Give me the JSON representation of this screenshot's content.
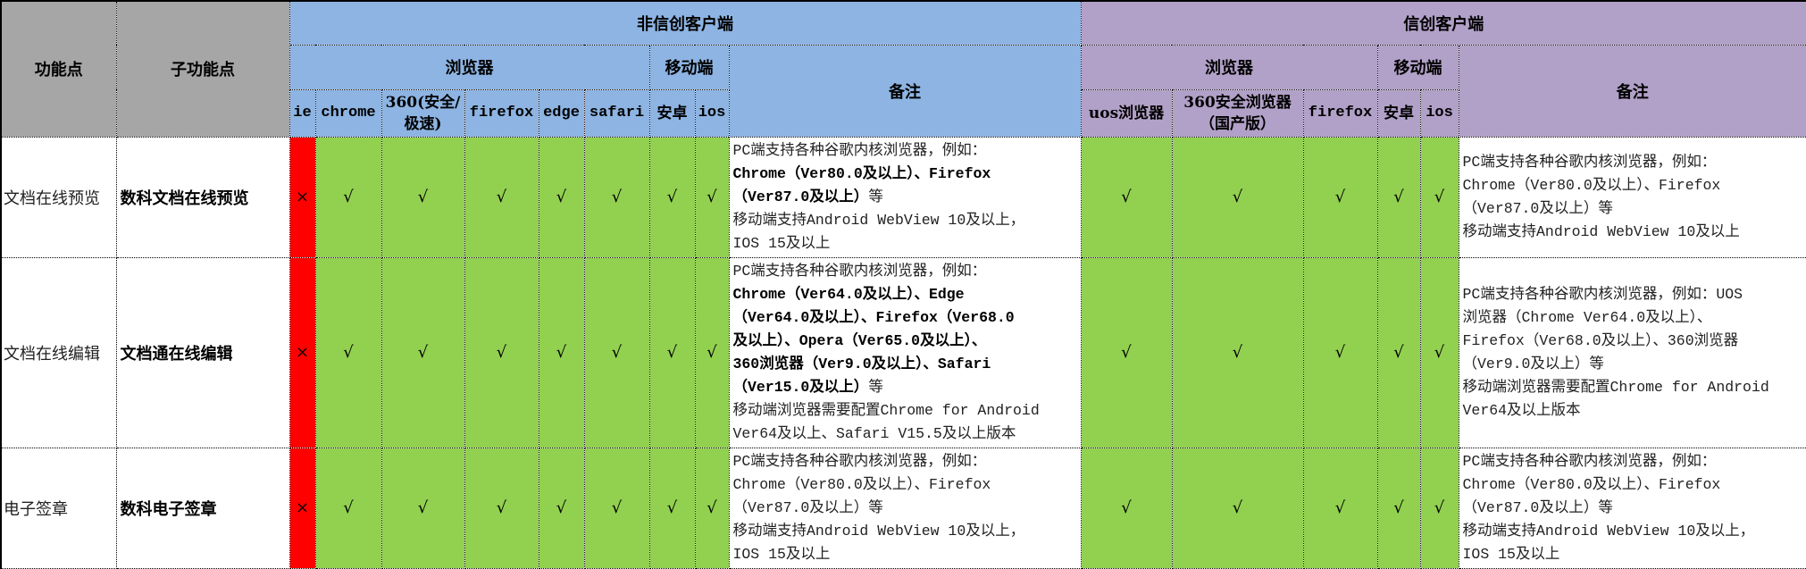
{
  "colors": {
    "feature_header": "#A6A6A6",
    "non_xinchuang": "#8DB4E2",
    "xinchuang": "#B1A0C7",
    "supported": "#92D050",
    "unsupported": "#FF0000"
  },
  "header": {
    "feature": "功能点",
    "sub_feature": "子功能点",
    "non_xinchuang": {
      "title": "非信创客户端",
      "browsers_label": "浏览器",
      "mobile_label": "移动端",
      "remark_label": "备注",
      "browsers": [
        "ie",
        "chrome",
        "360(安全/极速)",
        "firefox",
        "edge",
        "safari"
      ],
      "mobile": [
        "安卓",
        "ios"
      ]
    },
    "xinchuang": {
      "title": "信创客户端",
      "browsers_label": "浏览器",
      "mobile_label": "移动端",
      "remark_label": "备注",
      "browsers": [
        "uos浏览器",
        "360安全浏览器（国产版）",
        "firefox"
      ],
      "mobile": [
        "安卓",
        "ios"
      ]
    }
  },
  "rows": [
    {
      "feature": "文档在线预览",
      "sub_feature": "数科文档在线预览",
      "non_xinchuang": [
        "×",
        "√",
        "√",
        "√",
        "√",
        "√",
        "√",
        "√"
      ],
      "non_xinchuang_remark": [
        {
          "t": "PC端支持各种谷歌内核浏览器，例如："
        },
        {
          "b": "Chrome（Ver80.0及以上）、Firefox"
        },
        {
          "b": "（Ver87.0及以上）",
          "t": "等"
        },
        {
          "t": "移动端支持Android  WebView 10及以上，"
        },
        {
          "t": "IOS 15及以上"
        }
      ],
      "xinchuang": [
        "√",
        "√",
        "√",
        "√",
        "√"
      ],
      "xinchuang_remark": [
        {
          "t": "PC端支持各种谷歌内核浏览器，例如："
        },
        {
          "t": "Chrome（Ver80.0及以上）、Firefox"
        },
        {
          "t": "（Ver87.0及以上）等"
        },
        {
          "t": "移动端支持Android  WebView 10及以上"
        }
      ]
    },
    {
      "feature": "文档在线编辑",
      "sub_feature": "文档通在线编辑",
      "non_xinchuang": [
        "×",
        "√",
        "√",
        "√",
        "√",
        "√",
        "√",
        "√"
      ],
      "non_xinchuang_remark": [
        {
          "t": "PC端支持各种谷歌内核浏览器，例如："
        },
        {
          "b": "Chrome（Ver64.0及以上）、Edge"
        },
        {
          "b": "（Ver64.0及以上）、Firefox（Ver68.0"
        },
        {
          "b": "及以上）、Opera（Ver65.0及以上）、"
        },
        {
          "b": "360浏览器（Ver9.0及以上）、Safari"
        },
        {
          "b": "（Ver15.0及以上）",
          "t": "等"
        },
        {
          "t": "移动端浏览器需要配置Chrome for Android"
        },
        {
          "t": "Ver64及以上、Safari V15.5及以上版本"
        }
      ],
      "xinchuang": [
        "√",
        "√",
        "√",
        "√",
        "√"
      ],
      "xinchuang_remark": [
        {
          "t": "PC端支持各种谷歌内核浏览器，例如：UOS"
        },
        {
          "t": "浏览器（Chrome Ver64.0及以上）、"
        },
        {
          "t": "Firefox（Ver68.0及以上）、360浏览器"
        },
        {
          "t": "（Ver9.0及以上）等"
        },
        {
          "t": "移动端浏览器需要配置Chrome for Android"
        },
        {
          "t": "Ver64及以上版本"
        }
      ]
    },
    {
      "feature": "电子签章",
      "sub_feature": "数科电子签章",
      "non_xinchuang": [
        "×",
        "√",
        "√",
        "√",
        "√",
        "√",
        "√",
        "√"
      ],
      "non_xinchuang_remark": [
        {
          "t": "PC端支持各种谷歌内核浏览器，例如："
        },
        {
          "t": "Chrome（Ver80.0及以上）、Firefox"
        },
        {
          "t": "（Ver87.0及以上）等"
        },
        {
          "t": "移动端支持Android  WebView 10及以上，"
        },
        {
          "t": "IOS 15及以上"
        }
      ],
      "xinchuang": [
        "√",
        "√",
        "√",
        "√",
        "√"
      ],
      "xinchuang_remark": [
        {
          "t": "PC端支持各种谷歌内核浏览器，例如："
        },
        {
          "t": "Chrome（Ver80.0及以上）、Firefox"
        },
        {
          "t": "（Ver87.0及以上）等"
        },
        {
          "t": "移动端支持Android  WebView 10及以上，"
        },
        {
          "t": "IOS 15及以上"
        }
      ]
    }
  ]
}
